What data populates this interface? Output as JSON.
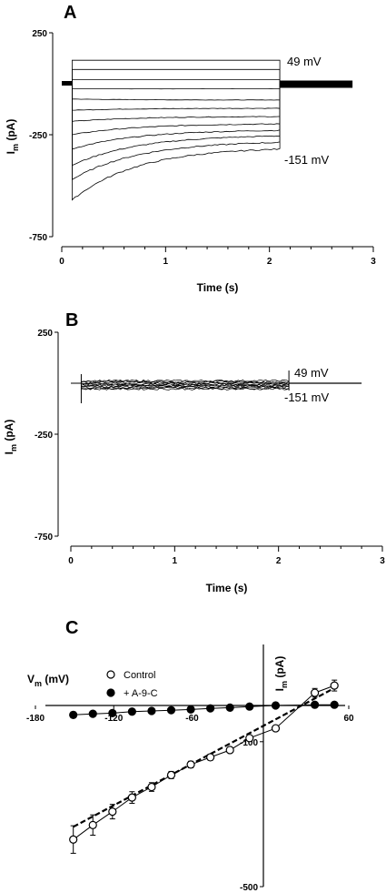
{
  "chart_data": [
    {
      "panel": "A",
      "type": "line",
      "xlabel": "Time (s)",
      "ylabel_main": "I",
      "ylabel_sub": "m",
      "ylabel_unit": "(pA)",
      "xlim": [
        0,
        3
      ],
      "ylim": [
        -750,
        250
      ],
      "x_ticks": [
        "0",
        "1",
        "2",
        "3"
      ],
      "y_ticks": [
        "250",
        "-250",
        "-750"
      ],
      "y_tick_values": [
        250,
        -250,
        -750
      ],
      "x_tick_values": [
        0,
        1,
        2,
        3
      ],
      "step_start_s": 0.1,
      "step_end_s": 2.1,
      "sweep_end_s": 2.8,
      "holding_current_pA": 0,
      "sweeps": [
        {
          "label": "49 mV",
          "initial_pA": 115,
          "steady_pA": 115
        },
        {
          "label": "",
          "initial_pA": 70,
          "steady_pA": 70
        },
        {
          "label": "",
          "initial_pA": 20,
          "steady_pA": 20
        },
        {
          "label": "",
          "initial_pA": -25,
          "steady_pA": -25
        },
        {
          "label": "",
          "initial_pA": -75,
          "steady_pA": -80
        },
        {
          "label": "",
          "initial_pA": -130,
          "steady_pA": -120
        },
        {
          "label": "",
          "initial_pA": -185,
          "steady_pA": -160
        },
        {
          "label": "",
          "initial_pA": -250,
          "steady_pA": -195
        },
        {
          "label": "",
          "initial_pA": -320,
          "steady_pA": -225
        },
        {
          "label": "",
          "initial_pA": -400,
          "steady_pA": -250
        },
        {
          "label": "",
          "initial_pA": -470,
          "steady_pA": -280
        },
        {
          "label": "-151 mV",
          "initial_pA": -570,
          "steady_pA": -310
        }
      ],
      "annotations": [
        "49 mV",
        "-151 mV"
      ]
    },
    {
      "panel": "B",
      "type": "line",
      "xlabel": "Time (s)",
      "ylabel_main": "I",
      "ylabel_sub": "m",
      "ylabel_unit": "(pA)",
      "xlim": [
        0,
        3
      ],
      "ylim": [
        -750,
        250
      ],
      "x_ticks": [
        "0",
        "1",
        "2",
        "3"
      ],
      "y_ticks": [
        "250",
        "-250",
        "-750"
      ],
      "y_tick_values": [
        250,
        -250,
        -750
      ],
      "x_tick_values": [
        0,
        1,
        2,
        3
      ],
      "step_start_s": 0.1,
      "step_end_s": 2.1,
      "sweep_end_s": 2.8,
      "sweep_offsets_pA": [
        12,
        8,
        4,
        0,
        -4,
        -8,
        -12,
        -16,
        -20,
        -24,
        -28
      ],
      "annotations": [
        "49 mV",
        "-151 mV"
      ]
    },
    {
      "panel": "C",
      "type": "scatter",
      "xlabel_main": "V",
      "xlabel_sub": "m",
      "xlabel_unit": "(mV)",
      "ylabel_main": "I",
      "ylabel_sub": "m",
      "ylabel_unit": "(pA)",
      "xlim": [
        -180,
        60
      ],
      "ylim": [
        -500,
        40
      ],
      "x_ticks": [
        "-180",
        "-120",
        "-60",
        "60"
      ],
      "x_tick_values": [
        -180,
        -120,
        -60,
        60
      ],
      "y_ticks": [
        "-100",
        "-500"
      ],
      "y_tick_values": [
        -100,
        -500
      ],
      "legend": [
        "Control",
        "+ A-9-C"
      ],
      "legend_position": "top-left",
      "series": [
        {
          "name": "Control",
          "marker": "open-circle",
          "x": [
            -151,
            -136,
            -121,
            -106,
            -91,
            -76,
            -61,
            -46,
            -31,
            -16,
            4,
            34,
            49
          ],
          "y": [
            -370,
            -330,
            -293,
            -254,
            -225,
            -192,
            -163,
            -143,
            -123,
            -90,
            -63,
            35,
            55
          ],
          "err": [
            38,
            28,
            20,
            16,
            12,
            10,
            9,
            8,
            7,
            6,
            5,
            12,
            15
          ]
        },
        {
          "name": "+ A-9-C",
          "marker": "filled-circle",
          "x": [
            -151,
            -136,
            -121,
            -106,
            -91,
            -76,
            -61,
            -46,
            -31,
            -16,
            4,
            34,
            49
          ],
          "y": [
            -26,
            -23,
            -21,
            -17,
            -15,
            -13,
            -11,
            -8,
            -6,
            -3,
            0,
            2,
            2
          ],
          "err": [
            8,
            7,
            5,
            4,
            3,
            3,
            2,
            2,
            2,
            2,
            2,
            2,
            2
          ]
        }
      ],
      "fit_line": {
        "style": "dashed",
        "x": [
          -151,
          49
        ],
        "y": [
          -335,
          48
        ]
      }
    }
  ]
}
